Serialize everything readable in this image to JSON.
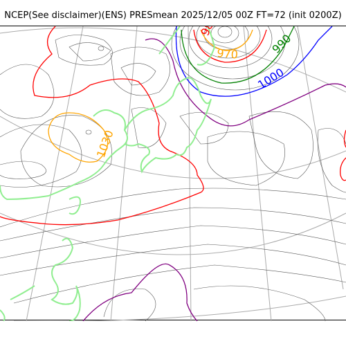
{
  "title": "NCEP(See disclaimer)(ENS) PRESmean 2025/12/05 00Z FT=72 (init 0200Z)",
  "contour_labels": [
    {
      "text": "990",
      "color": "#008000"
    },
    {
      "text": "1000",
      "color": "#0000ff"
    },
    {
      "text": "970",
      "color": "#ffa500"
    },
    {
      "text": "1030",
      "color": "#ffa500"
    },
    {
      "text": "98",
      "color": "#ff0000"
    }
  ],
  "colors": {
    "coast": "#90ee90",
    "graticule": "#aaaaaa",
    "isobar": "#555555",
    "line_970": "#ffa500",
    "line_980": "#ff0000",
    "line_990": "#008000",
    "line_1000": "#0000ff",
    "line_1010": "#800080",
    "line_1020": "#ff0000",
    "line_1030": "#ffa500"
  }
}
